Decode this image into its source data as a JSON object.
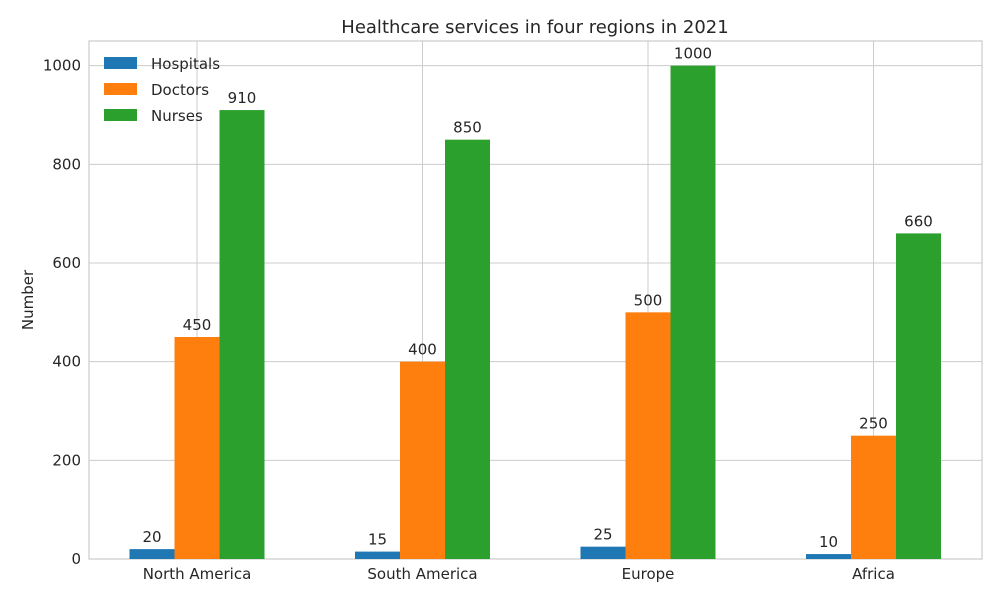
{
  "chart_data": {
    "type": "bar",
    "title": "Healthcare services in four regions in 2021",
    "xlabel": "",
    "ylabel": "Number",
    "categories": [
      "North America",
      "South America",
      "Europe",
      "Africa"
    ],
    "series": [
      {
        "name": "Hospitals",
        "values": [
          20,
          15,
          25,
          10
        ],
        "color": "#1f77b4"
      },
      {
        "name": "Doctors",
        "values": [
          450,
          400,
          500,
          250
        ],
        "color": "#ff7f0e"
      },
      {
        "name": "Nurses",
        "values": [
          910,
          850,
          1000,
          660
        ],
        "color": "#2ca02c"
      }
    ],
    "ylim": [
      0,
      1050
    ],
    "yticks": [
      0,
      200,
      400,
      600,
      800,
      1000
    ],
    "grid": true,
    "legend_position": "top-left"
  }
}
